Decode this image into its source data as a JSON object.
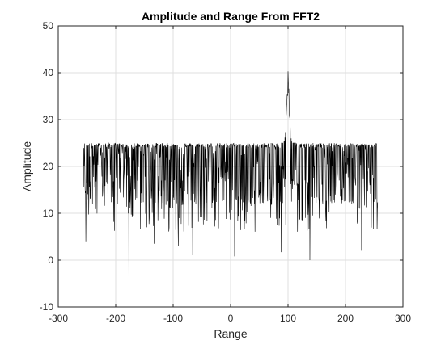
{
  "chart_data": {
    "type": "line",
    "title": "Amplitude and Range From FFT2",
    "xlabel": "Range",
    "ylabel": "Amplitude",
    "xlim": [
      -300,
      300
    ],
    "ylim": [
      -10,
      50
    ],
    "xticks": [
      -300,
      -200,
      -100,
      0,
      100,
      200,
      300
    ],
    "yticks": [
      -10,
      0,
      10,
      20,
      30,
      40,
      50
    ],
    "grid": true,
    "series_color": "#000000",
    "series": [
      {
        "x_range": [
          -256,
          256
        ],
        "noise_floor_max": 25,
        "noise_floor_typical_min": 10,
        "peak": {
          "x": 100,
          "y": 40.3
        },
        "deep_dips": [
          {
            "x": -177,
            "y": -5.8
          },
          {
            "x": -252,
            "y": 4
          },
          {
            "x": 7,
            "y": 0.8
          },
          {
            "x": 138,
            "y": 0
          },
          {
            "x": 88,
            "y": 1.7
          },
          {
            "x": -66,
            "y": 1.2
          },
          {
            "x": -133,
            "y": 3.5
          },
          {
            "x": -91,
            "y": 3
          },
          {
            "x": 228,
            "y": 2
          }
        ]
      }
    ]
  }
}
